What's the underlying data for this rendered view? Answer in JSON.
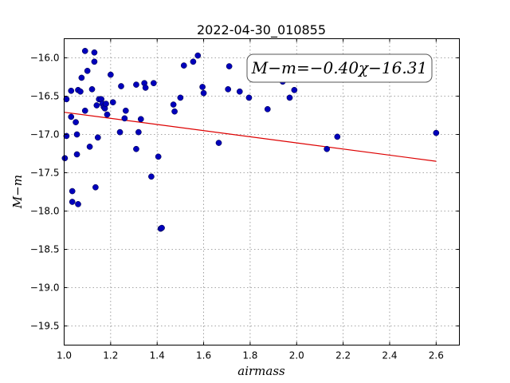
{
  "chart_data": {
    "type": "scatter",
    "title": "2022-04-30_010855",
    "xlabel": "airmass",
    "ylabel": "M−m",
    "xlim": [
      1.0,
      2.7
    ],
    "ylim": [
      -15.75,
      -19.75
    ],
    "y_inverted": true,
    "grid": true,
    "x_ticks": [
      "1.0",
      "1.2",
      "1.4",
      "1.6",
      "1.8",
      "2.0",
      "2.2",
      "2.4",
      "2.6"
    ],
    "y_ticks": [
      "−16.0",
      "−16.5",
      "−17.0",
      "−17.5",
      "−18.0",
      "−18.5",
      "−19.0",
      "−19.5"
    ],
    "annotation": "M−m=−0.40χ−16.31",
    "fit": {
      "slope": -0.4,
      "intercept": -16.31,
      "x_range": [
        1.0,
        2.6
      ],
      "color": "#dd0000"
    },
    "marker_color": "#0000bb",
    "series": [
      {
        "points": [
          [
            1.003,
            -17.31
          ],
          [
            1.01,
            -16.54
          ],
          [
            1.01,
            -17.02
          ],
          [
            1.03,
            -16.43
          ],
          [
            1.03,
            -16.77
          ],
          [
            1.035,
            -17.74
          ],
          [
            1.035,
            -17.88
          ],
          [
            1.05,
            -16.84
          ],
          [
            1.055,
            -17.0
          ],
          [
            1.055,
            -17.26
          ],
          [
            1.06,
            -17.91
          ],
          [
            1.06,
            -16.42
          ],
          [
            1.07,
            -16.44
          ],
          [
            1.075,
            -16.26
          ],
          [
            1.09,
            -15.91
          ],
          [
            1.09,
            -16.69
          ],
          [
            1.1,
            -16.17
          ],
          [
            1.11,
            -17.16
          ],
          [
            1.12,
            -16.41
          ],
          [
            1.13,
            -16.05
          ],
          [
            1.13,
            -15.93
          ],
          [
            1.135,
            -17.69
          ],
          [
            1.14,
            -16.62
          ],
          [
            1.145,
            -17.04
          ],
          [
            1.15,
            -16.54
          ],
          [
            1.16,
            -16.54
          ],
          [
            1.165,
            -16.6
          ],
          [
            1.17,
            -16.64
          ],
          [
            1.175,
            -16.66
          ],
          [
            1.18,
            -16.6
          ],
          [
            1.185,
            -16.74
          ],
          [
            1.2,
            -16.22
          ],
          [
            1.21,
            -16.58
          ],
          [
            1.24,
            -16.97
          ],
          [
            1.245,
            -16.37
          ],
          [
            1.26,
            -16.79
          ],
          [
            1.265,
            -16.69
          ],
          [
            1.31,
            -17.19
          ],
          [
            1.31,
            -16.35
          ],
          [
            1.32,
            -16.97
          ],
          [
            1.33,
            -16.8
          ],
          [
            1.345,
            -16.33
          ],
          [
            1.35,
            -16.39
          ],
          [
            1.375,
            -17.55
          ],
          [
            1.385,
            -16.33
          ],
          [
            1.405,
            -17.29
          ],
          [
            1.415,
            -18.23
          ],
          [
            1.42,
            -18.22
          ],
          [
            1.47,
            -16.61
          ],
          [
            1.475,
            -16.7
          ],
          [
            1.5,
            -16.52
          ],
          [
            1.515,
            -16.1
          ],
          [
            1.555,
            -16.05
          ],
          [
            1.575,
            -15.97
          ],
          [
            1.595,
            -16.38
          ],
          [
            1.6,
            -16.46
          ],
          [
            1.665,
            -17.11
          ],
          [
            1.705,
            -16.41
          ],
          [
            1.71,
            -16.11
          ],
          [
            1.755,
            -16.44
          ],
          [
            1.795,
            -16.52
          ],
          [
            1.875,
            -16.67
          ],
          [
            1.94,
            -16.31
          ],
          [
            1.97,
            -16.52
          ],
          [
            1.99,
            -16.42
          ],
          [
            2.13,
            -17.19
          ],
          [
            2.175,
            -17.03
          ],
          [
            2.6,
            -16.98
          ]
        ]
      }
    ]
  }
}
